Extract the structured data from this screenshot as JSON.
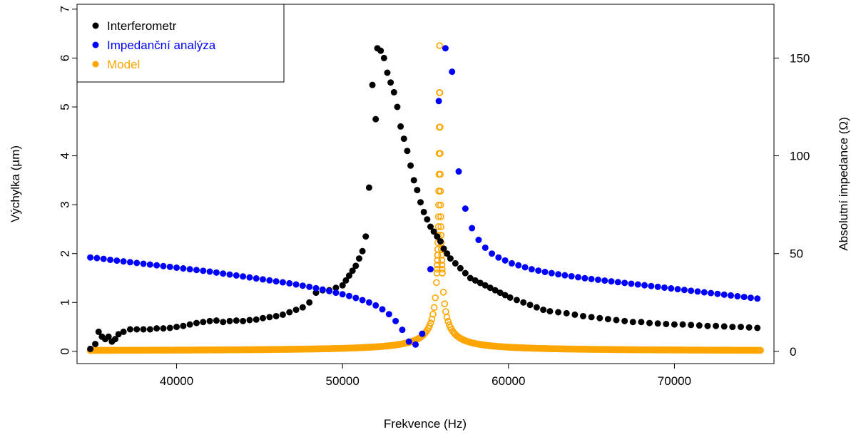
{
  "chart_data": {
    "type": "scatter",
    "xlabel": "Frekvence (Hz)",
    "ylabel_left": "Výchylka (µm)",
    "ylabel_right": "Absolutní impedance (Ω)",
    "xlim": [
      34000,
      76000
    ],
    "ylim_left": [
      -0.25,
      7.1
    ],
    "ylim_right": [
      -6.25,
      177.5
    ],
    "xticks": [
      "40000",
      "50000",
      "60000",
      "70000"
    ],
    "yticks_left": [
      "0",
      "1",
      "2",
      "3",
      "4",
      "5",
      "6",
      "7"
    ],
    "yticks_right": [
      "0",
      "50",
      "100",
      "150"
    ],
    "grid": false,
    "legend_position": "top-left",
    "series": [
      {
        "name": "Interferometr",
        "axis": "left",
        "color": "#000000",
        "marker": "filled-circle",
        "x": [
          34800,
          35100,
          35300,
          35500,
          35700,
          35900,
          36100,
          36300,
          36500,
          36800,
          37200,
          37600,
          38000,
          38400,
          38800,
          39200,
          39600,
          40000,
          40400,
          40800,
          41200,
          41600,
          42000,
          42400,
          42800,
          43200,
          43600,
          44000,
          44400,
          44800,
          45200,
          45600,
          46000,
          46400,
          46800,
          47200,
          47600,
          48000,
          48400,
          48800,
          49200,
          49600,
          50000,
          50200,
          50400,
          50600,
          50800,
          51000,
          51200,
          51400,
          51600,
          51800,
          52000,
          52100,
          52300,
          52500,
          52700,
          52900,
          53100,
          53300,
          53500,
          53700,
          53900,
          54100,
          54300,
          54500,
          54700,
          54900,
          55100,
          55300,
          55500,
          55700,
          55900,
          56100,
          56300,
          56500,
          56800,
          57100,
          57400,
          57700,
          58000,
          58300,
          58600,
          58900,
          59200,
          59500,
          59800,
          60100,
          60500,
          60900,
          61300,
          61700,
          62100,
          62500,
          63000,
          63500,
          64000,
          64500,
          65000,
          65500,
          66000,
          66500,
          67000,
          67500,
          68000,
          68500,
          69000,
          69500,
          70000,
          70500,
          71000,
          71500,
          72000,
          72500,
          73000,
          73500,
          74000,
          74500,
          75000
        ],
        "y": [
          0.05,
          0.15,
          0.4,
          0.3,
          0.25,
          0.3,
          0.2,
          0.25,
          0.35,
          0.4,
          0.45,
          0.45,
          0.45,
          0.45,
          0.47,
          0.47,
          0.48,
          0.5,
          0.52,
          0.55,
          0.58,
          0.6,
          0.62,
          0.63,
          0.6,
          0.62,
          0.63,
          0.62,
          0.64,
          0.65,
          0.68,
          0.7,
          0.72,
          0.75,
          0.8,
          0.85,
          0.9,
          1.0,
          1.2,
          1.25,
          1.25,
          1.3,
          1.35,
          1.45,
          1.55,
          1.65,
          1.75,
          1.9,
          2.05,
          2.35,
          3.35,
          5.45,
          4.75,
          6.2,
          6.15,
          6.0,
          5.7,
          5.5,
          5.3,
          5.0,
          4.6,
          4.35,
          4.1,
          3.8,
          3.5,
          3.3,
          3.05,
          2.85,
          2.7,
          2.55,
          2.45,
          2.35,
          2.25,
          2.1,
          2.0,
          1.9,
          1.8,
          1.7,
          1.6,
          1.5,
          1.45,
          1.4,
          1.35,
          1.3,
          1.25,
          1.2,
          1.15,
          1.1,
          1.05,
          1.0,
          0.95,
          0.9,
          0.85,
          0.82,
          0.8,
          0.78,
          0.75,
          0.72,
          0.7,
          0.68,
          0.66,
          0.64,
          0.62,
          0.6,
          0.6,
          0.58,
          0.57,
          0.56,
          0.55,
          0.55,
          0.54,
          0.53,
          0.52,
          0.52,
          0.51,
          0.5,
          0.5,
          0.49,
          0.48
        ]
      },
      {
        "name": "Impedanční analýza",
        "axis": "right",
        "color": "#0000ff",
        "marker": "filled-circle",
        "x": [
          34800,
          35200,
          35600,
          36000,
          36400,
          36800,
          37200,
          37600,
          38000,
          38400,
          38800,
          39200,
          39600,
          40000,
          40400,
          40800,
          41200,
          41600,
          42000,
          42400,
          42800,
          43200,
          43600,
          44000,
          44400,
          44800,
          45200,
          45600,
          46000,
          46400,
          46800,
          47200,
          47600,
          48000,
          48400,
          48800,
          49200,
          49600,
          50000,
          50400,
          50800,
          51200,
          51600,
          52000,
          52400,
          52800,
          53200,
          53600,
          54000,
          54400,
          54800,
          55300,
          55800,
          56200,
          56600,
          57000,
          57400,
          57800,
          58200,
          58600,
          59000,
          59400,
          59800,
          60200,
          60600,
          61000,
          61400,
          61800,
          62200,
          62600,
          63000,
          63400,
          63800,
          64200,
          64600,
          65000,
          65400,
          65800,
          66200,
          66600,
          67000,
          67400,
          67800,
          68200,
          68600,
          69000,
          69400,
          69800,
          70200,
          70600,
          71000,
          71400,
          71800,
          72200,
          72600,
          73000,
          73400,
          73800,
          74200,
          74600,
          75000
        ],
        "y": [
          48,
          47.7,
          47.3,
          46.8,
          46.4,
          46,
          45.6,
          45.2,
          44.8,
          44.4,
          44,
          43.6,
          43.2,
          42.8,
          42.4,
          42,
          41.6,
          41.2,
          40.8,
          40.3,
          39.8,
          39.3,
          38.8,
          38.3,
          37.8,
          37.3,
          36.8,
          36.3,
          35.8,
          35.3,
          34.8,
          34.2,
          33.6,
          33,
          32.3,
          31.6,
          30.8,
          30,
          29.2,
          28.3,
          27.3,
          26.2,
          25,
          23.5,
          21.5,
          19,
          15.5,
          11,
          5,
          3.5,
          9,
          42,
          128,
          155,
          143,
          92,
          73,
          63,
          57,
          53,
          50,
          48,
          46.5,
          45,
          44,
          43,
          42,
          41.3,
          40.6,
          40,
          39.4,
          38.9,
          38.4,
          37.9,
          37.4,
          37,
          36.6,
          36.2,
          35.8,
          35.4,
          35,
          34.6,
          34.2,
          33.8,
          33.4,
          33,
          32.6,
          32.2,
          31.8,
          31.4,
          31,
          30.6,
          30.2,
          29.8,
          29.4,
          29,
          28.6,
          28.2,
          27.8,
          27.4,
          27
        ]
      },
      {
        "name": "Model",
        "axis": "left",
        "color": "#ffa500",
        "marker": "open-circle",
        "model": {
          "f0": 55850,
          "fmin": 34800,
          "fmax": 75200,
          "peak": 6.25,
          "bg": 0.004
        }
      }
    ]
  }
}
